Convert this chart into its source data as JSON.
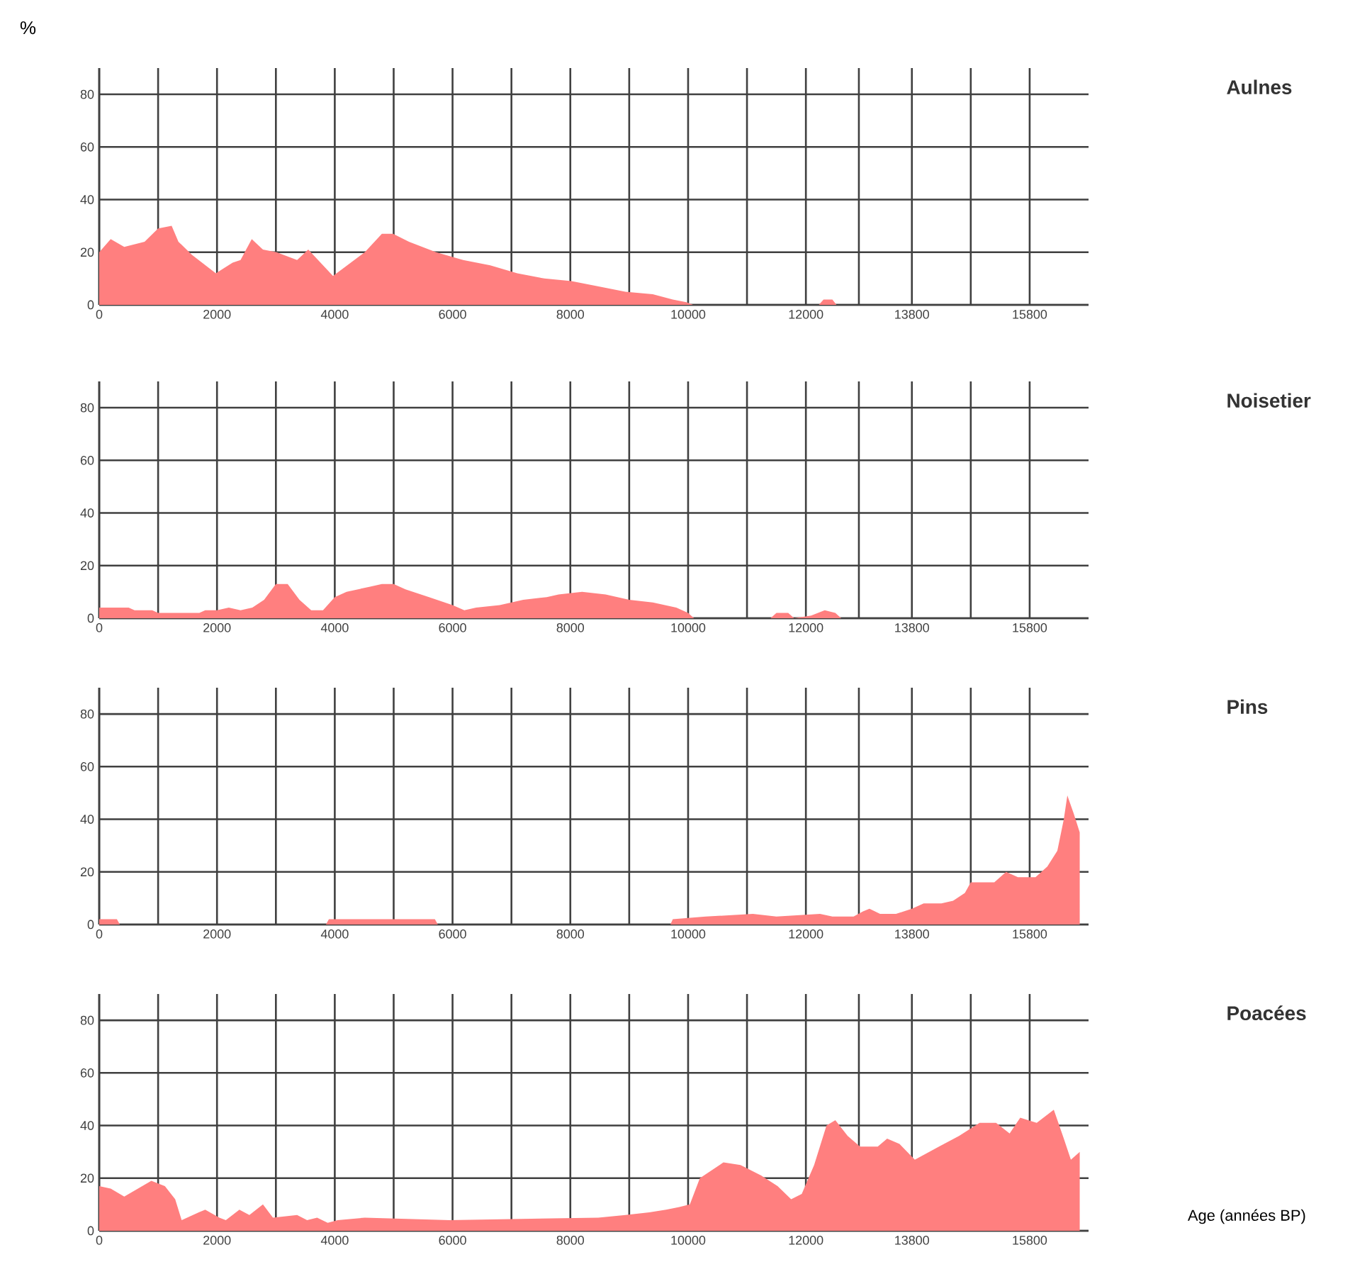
{
  "chart_data": [
    {
      "type": "area",
      "ylabel": "%",
      "grid": true,
      "x": [
        0,
        195,
        425,
        770,
        1000,
        1230,
        1345,
        1575,
        1980,
        2265,
        2400,
        2590,
        2780,
        3010,
        3360,
        3550,
        3970,
        4510,
        4800,
        4990,
        5260,
        5720,
        6180,
        6640,
        7100,
        7560,
        8020,
        8480,
        8935,
        9400,
        9740,
        9970,
        10085,
        12220,
        12300,
        12450,
        12520,
        16650
      ],
      "series": [
        {
          "name": "Aulnes",
          "color": "#ff7f7f",
          "values": [
            20,
            25,
            22,
            24,
            29,
            30,
            24,
            19,
            12,
            16,
            17,
            25,
            21,
            20,
            17,
            21,
            11,
            20,
            27,
            27,
            24,
            20,
            17,
            15,
            12,
            10,
            9,
            7,
            5,
            4,
            2,
            1,
            0,
            0,
            2,
            2,
            0,
            0
          ]
        }
      ],
      "xlim": [
        0,
        16800
      ],
      "ylim": [
        0,
        90
      ],
      "xticks": [
        0,
        {
          "value": 1000,
          "label": null
        },
        2000,
        {
          "value": 3000,
          "label": null
        },
        4000,
        {
          "value": 5000,
          "label": null
        },
        6000,
        {
          "value": 7000,
          "label": null
        },
        8000,
        {
          "value": 9000,
          "label": null
        },
        10000,
        {
          "value": 11000,
          "label": null
        },
        12000,
        {
          "value": 12900,
          "label": null
        },
        13800,
        {
          "value": 14800,
          "label": null
        },
        15800
      ],
      "yticks": [
        0,
        20,
        40,
        60,
        80
      ]
    },
    {
      "type": "area",
      "grid": true,
      "x": [
        0,
        500,
        600,
        900,
        1000,
        1700,
        1800,
        2000,
        2200,
        2400,
        2600,
        2800,
        3000,
        3200,
        3400,
        3600,
        3800,
        4000,
        4200,
        4600,
        4800,
        5000,
        5200,
        5600,
        6000,
        6200,
        6400,
        6800,
        7200,
        7600,
        7800,
        8200,
        8600,
        9000,
        9400,
        9800,
        10000,
        10100,
        11400,
        11500,
        11700,
        11800,
        12090,
        12320,
        12500,
        12600,
        16650
      ],
      "series": [
        {
          "name": "Noisetier",
          "color": "#ff7f7f",
          "values": [
            4,
            4,
            3,
            3,
            2,
            2,
            3,
            3,
            4,
            3,
            4,
            7,
            13,
            13,
            7,
            3,
            3,
            8,
            10,
            12,
            13,
            13,
            11,
            8,
            5,
            3,
            4,
            5,
            7,
            8,
            9,
            10,
            9,
            7,
            6,
            4,
            2,
            0,
            0,
            2,
            2,
            0,
            1,
            3,
            2,
            0,
            0
          ]
        }
      ],
      "xlim": [
        0,
        16800
      ],
      "ylim": [
        0,
        90
      ],
      "xticks": [
        0,
        {
          "value": 1000,
          "label": null
        },
        2000,
        {
          "value": 3000,
          "label": null
        },
        4000,
        {
          "value": 5000,
          "label": null
        },
        6000,
        {
          "value": 7000,
          "label": null
        },
        8000,
        {
          "value": 9000,
          "label": null
        },
        10000,
        {
          "value": 11000,
          "label": null
        },
        12000,
        {
          "value": 12900,
          "label": null
        },
        13800,
        {
          "value": 14800,
          "label": null
        },
        15800
      ],
      "yticks": [
        0,
        20,
        40,
        60,
        80
      ]
    },
    {
      "type": "area",
      "grid": true,
      "x": [
        0,
        300,
        350,
        3850,
        3900,
        5700,
        5750,
        9700,
        9740,
        10300,
        11100,
        11500,
        12240,
        12450,
        12810,
        12970,
        13080,
        13260,
        13530,
        13800,
        14000,
        14300,
        14500,
        14700,
        14800,
        15200,
        15400,
        15600,
        15900,
        16100,
        16270,
        16380,
        16440,
        16550,
        16650
      ],
      "series": [
        {
          "name": "Pins",
          "color": "#ff7f7f",
          "values": [
            2,
            2,
            0,
            0,
            2,
            2,
            0,
            0,
            2,
            3,
            4,
            3,
            4,
            3,
            3,
            5,
            6,
            4,
            4,
            6,
            8,
            8,
            9,
            12,
            16,
            16,
            20,
            18,
            18,
            22,
            28,
            40,
            49,
            42,
            35
          ]
        }
      ],
      "xlim": [
        0,
        16800
      ],
      "ylim": [
        0,
        90
      ],
      "xticks": [
        0,
        {
          "value": 1000,
          "label": null
        },
        2000,
        {
          "value": 3000,
          "label": null
        },
        4000,
        {
          "value": 5000,
          "label": null
        },
        6000,
        {
          "value": 7000,
          "label": null
        },
        8000,
        {
          "value": 9000,
          "label": null
        },
        10000,
        {
          "value": 11000,
          "label": null
        },
        12000,
        {
          "value": 12900,
          "label": null
        },
        13800,
        {
          "value": 14800,
          "label": null
        },
        15800
      ],
      "yticks": [
        0,
        20,
        40,
        60,
        80
      ]
    },
    {
      "type": "area",
      "annotations": [
        "Age (années BP)"
      ],
      "grid": true,
      "x": [
        0,
        195,
        425,
        655,
        885,
        1115,
        1290,
        1400,
        1690,
        1800,
        2040,
        2150,
        2380,
        2550,
        2780,
        2950,
        3360,
        3530,
        3700,
        3880,
        4050,
        4510,
        5950,
        8475,
        8935,
        9340,
        9625,
        9850,
        10030,
        10200,
        10600,
        10890,
        11240,
        11520,
        11750,
        11930,
        12140,
        12350,
        12500,
        12710,
        12920,
        13220,
        13380,
        13590,
        13850,
        14260,
        14600,
        14950,
        15230,
        15460,
        15640,
        15920,
        16210,
        16380,
        16500,
        16650
      ],
      "series": [
        {
          "name": "Poacées",
          "color": "#ff7f7f",
          "values": [
            17,
            16,
            13,
            16,
            19,
            17,
            12,
            4,
            7,
            8,
            5,
            4,
            8,
            6,
            10,
            5,
            6,
            4,
            5,
            3,
            4,
            5,
            4,
            5,
            6,
            7,
            8,
            9,
            10,
            20,
            26,
            25,
            21,
            17,
            12,
            14,
            25,
            40,
            42,
            36,
            32,
            32,
            35,
            33,
            27,
            32,
            36,
            41,
            41,
            37,
            43,
            41,
            46,
            35,
            27,
            30
          ]
        }
      ],
      "xlim": [
        0,
        16800
      ],
      "ylim": [
        0,
        90
      ],
      "xticks": [
        0,
        {
          "value": 1000,
          "label": null
        },
        2000,
        {
          "value": 3000,
          "label": null
        },
        4000,
        {
          "value": 5000,
          "label": null
        },
        6000,
        {
          "value": 7000,
          "label": null
        },
        8000,
        {
          "value": 9000,
          "label": null
        },
        10000,
        {
          "value": 11000,
          "label": null
        },
        12000,
        {
          "value": 12900,
          "label": null
        },
        13800,
        {
          "value": 14800,
          "label": null
        },
        15800
      ],
      "yticks": [
        0,
        20,
        40,
        60,
        80
      ]
    }
  ]
}
